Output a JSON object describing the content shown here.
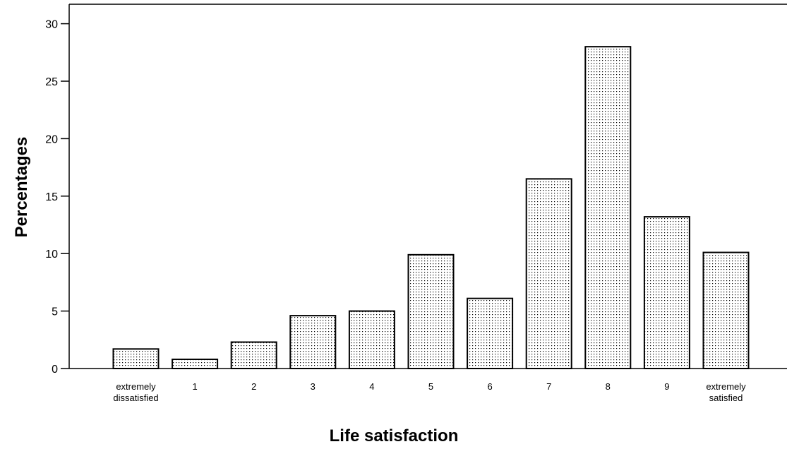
{
  "chart_data": {
    "type": "bar",
    "title": "",
    "xlabel": "Life satisfaction",
    "ylabel": "Percentages",
    "ylim": [
      0,
      30
    ],
    "yticks": [
      0,
      5,
      10,
      15,
      20,
      25,
      30
    ],
    "grid": false,
    "legend": "none",
    "categories": [
      [
        "extremely",
        "dissatisfied"
      ],
      [
        "1"
      ],
      [
        "2"
      ],
      [
        "3"
      ],
      [
        "4"
      ],
      [
        "5"
      ],
      [
        "6"
      ],
      [
        "7"
      ],
      [
        "8"
      ],
      [
        "9"
      ],
      [
        "extremely",
        "satisfied"
      ]
    ],
    "values": [
      1.7,
      0.8,
      2.3,
      4.6,
      5.0,
      9.9,
      6.1,
      16.5,
      28.0,
      13.2,
      10.1
    ],
    "colors": {
      "bar_fill": "#ffffff",
      "bar_pattern": "#000000",
      "bar_stroke": "#000000",
      "axis": "#000000"
    }
  }
}
